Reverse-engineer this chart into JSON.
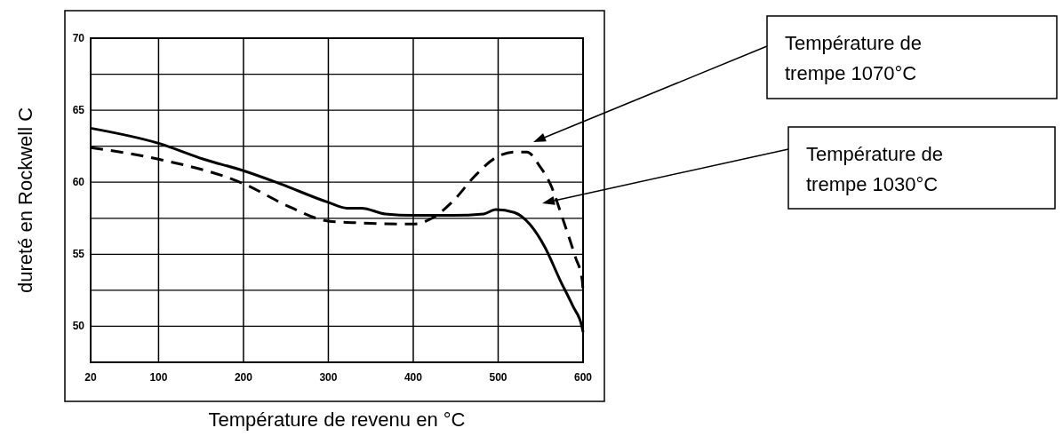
{
  "chart_data": {
    "type": "line",
    "xlabel": "Température de revenu en °C",
    "ylabel": "dureté en Rockwell C",
    "xlim": [
      20,
      600
    ],
    "xticks": [
      20,
      100,
      200,
      300,
      400,
      500,
      600
    ],
    "ylim": [
      47.5,
      70
    ],
    "yticks": [
      50,
      {
        "value": 52.5,
        "label": null
      },
      55,
      {
        "value": 57.5,
        "label": null
      },
      60,
      {
        "value": 62.5,
        "label": null
      },
      65,
      {
        "value": 67.5,
        "label": null
      },
      70
    ],
    "grid": true,
    "marker": "none",
    "series": [
      {
        "color": "#000000",
        "line_style": "solid",
        "x": [
          20,
          100,
          153,
          200,
          243,
          300,
          322,
          339,
          367,
          400,
          447,
          483,
          497,
          519,
          537,
          555,
          573,
          588,
          599,
          600
        ],
        "values": [
          63.75,
          62.7,
          61.6,
          60.8,
          59.9,
          58.6,
          58.2,
          58.2,
          57.8,
          57.7,
          57.7,
          57.8,
          58.1,
          57.9,
          57.1,
          55.5,
          53.2,
          51.4,
          49.9,
          49.6
        ]
      },
      {
        "color": "#000000",
        "line_style": "dashed",
        "x": [
          20,
          100,
          200,
          254,
          300,
          328,
          400,
          422,
          447,
          472,
          497,
          519,
          534,
          548,
          562,
          577,
          591,
          599,
          600
        ],
        "values": [
          62.4,
          61.6,
          59.9,
          58.3,
          57.3,
          57.2,
          57.1,
          57.5,
          58.7,
          60.4,
          61.7,
          62.1,
          62.1,
          61.2,
          59.8,
          57.3,
          54.8,
          53.2,
          52.4
        ]
      }
    ],
    "annotations": [
      "Température de\ntrempe 1070°C",
      "Température de\ntrempe 1030°C"
    ]
  }
}
